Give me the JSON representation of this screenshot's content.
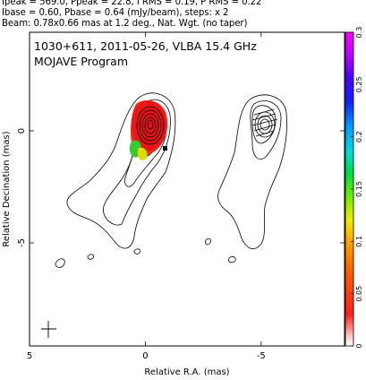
{
  "header": {
    "line1": "Ipeak = 569.0, Ppeak = 22.8, I RMS = 0.19, P RMS = 0.22",
    "line2": "Ibase = 0.60, Pbase = 0.64 (mJy/beam), steps: x 2",
    "line3": "Beam: 0.78x0.66 mas at 1.2 deg., Nat. Wgt. (no taper)"
  },
  "chart_data": {
    "type": "contour",
    "title": "1030+611, 2011-05-26, VLBA 15.4 GHz",
    "subtitle": "MOJAVE Program",
    "xlabel": "Relative R.A. (mas)",
    "ylabel": "Relative Decination (mas)",
    "xlim": [
      5,
      -8.6
    ],
    "ylim": [
      -9.6,
      4.4
    ],
    "x_ticks": [
      5,
      0,
      -5
    ],
    "y_ticks": [
      0,
      -5
    ],
    "x_tick_labels": [
      "5",
      "0",
      "-5"
    ],
    "y_tick_labels": [
      "0",
      "-5"
    ],
    "colorbar": {
      "min": 0,
      "max": 0.3,
      "ticks": [
        0,
        0.05,
        0.1,
        0.15,
        0.2,
        0.25,
        0.3
      ],
      "tick_labels": [
        "0",
        "0.05",
        "0.1",
        "0.15",
        "0.2",
        "0.25",
        "0.3"
      ]
    }
  },
  "colors": {
    "core": "#e4111a",
    "core_edge": "#f03010",
    "green": "#33cc33",
    "yellow": "#dddd00",
    "contour": "#000000"
  }
}
